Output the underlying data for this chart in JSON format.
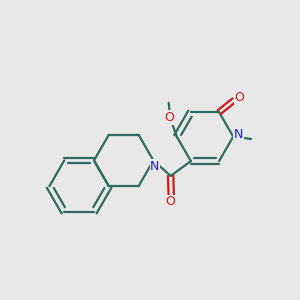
{
  "bg_color": "#e8e8e8",
  "bond_color": "#2d6b5e",
  "N_color": "#1a1acc",
  "O_color": "#cc1a1a",
  "line_width": 1.6,
  "fig_size": [
    3.0,
    3.0
  ],
  "dpi": 100,
  "xlim": [
    0,
    10
  ],
  "ylim": [
    0,
    10
  ]
}
